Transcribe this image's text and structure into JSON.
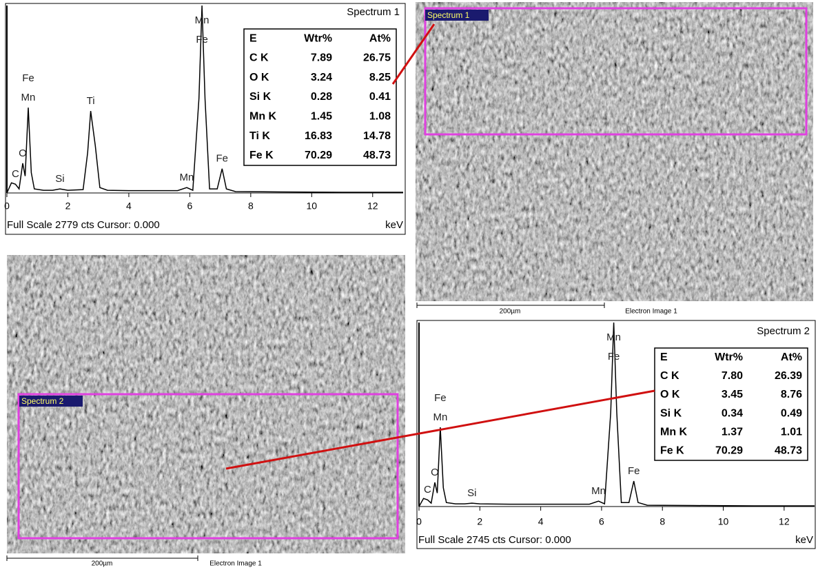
{
  "chart_data": [
    {
      "type": "line",
      "title": "Spectrum 1",
      "footer": "Full Scale 2779 cts Cursor: 0.000",
      "x_label": "keV",
      "xlim": [
        0,
        13
      ],
      "ylim": [
        0,
        2779
      ],
      "xticks": [
        0,
        2,
        4,
        6,
        8,
        10,
        12
      ],
      "color": "#000000",
      "x": [
        0,
        0.15,
        0.28,
        0.4,
        0.52,
        0.6,
        0.7,
        0.8,
        0.9,
        1.2,
        1.5,
        1.74,
        2.0,
        2.5,
        2.65,
        2.75,
        2.9,
        3.05,
        3.3,
        4,
        5,
        5.6,
        5.9,
        6.1,
        6.3,
        6.4,
        6.5,
        6.65,
        6.9,
        7.06,
        7.2,
        7.5,
        9,
        11,
        13
      ],
      "values": [
        0,
        150,
        130,
        60,
        440,
        250,
        1266,
        300,
        60,
        40,
        40,
        60,
        40,
        50,
        600,
        1215,
        700,
        80,
        40,
        35,
        35,
        35,
        80,
        40,
        1400,
        2779,
        1400,
        60,
        60,
        360,
        60,
        20,
        15,
        10,
        10
      ],
      "annotations": [
        {
          "x": 0.28,
          "labels": [
            "C"
          ]
        },
        {
          "x": 0.52,
          "labels": [
            "O"
          ]
        },
        {
          "x": 0.7,
          "labels": [
            "Fe",
            "Mn"
          ]
        },
        {
          "x": 1.74,
          "labels": [
            "Si"
          ]
        },
        {
          "x": 2.75,
          "labels": [
            "Ti"
          ]
        },
        {
          "x": 5.9,
          "labels": [
            "Mn"
          ]
        },
        {
          "x": 6.4,
          "labels": [
            "Mn",
            "Fe"
          ]
        },
        {
          "x": 7.06,
          "labels": [
            "Fe"
          ]
        }
      ],
      "table": {
        "header": [
          "E",
          "Wtr%",
          "At%"
        ],
        "rows": [
          [
            "C K",
            "7.89",
            "26.75"
          ],
          [
            "O K",
            "3.24",
            "8.25"
          ],
          [
            "Si K",
            "0.28",
            "0.41"
          ],
          [
            "Mn K",
            "1.45",
            "1.08"
          ],
          [
            "Ti  K",
            "16.83",
            "14.78"
          ],
          [
            "Fe K",
            "70.29",
            "48.73"
          ]
        ]
      }
    },
    {
      "type": "line",
      "title": "Spectrum 2",
      "footer": "Full Scale 2745 cts Cursor: 0.000",
      "x_label": "keV",
      "xlim": [
        0,
        13
      ],
      "ylim": [
        0,
        2745
      ],
      "xticks": [
        0,
        2,
        4,
        6,
        8,
        10,
        12
      ],
      "color": "#000000",
      "x": [
        0,
        0.15,
        0.28,
        0.4,
        0.52,
        0.6,
        0.7,
        0.8,
        0.9,
        1.2,
        1.5,
        1.74,
        2.0,
        3,
        4,
        5,
        5.6,
        5.9,
        6.1,
        6.3,
        6.4,
        6.5,
        6.65,
        6.9,
        7.06,
        7.2,
        7.5,
        9,
        11,
        13
      ],
      "values": [
        0,
        120,
        100,
        50,
        360,
        200,
        1182,
        280,
        60,
        40,
        40,
        50,
        40,
        35,
        35,
        35,
        35,
        80,
        40,
        1400,
        2745,
        1400,
        60,
        60,
        380,
        60,
        20,
        15,
        10,
        10
      ],
      "annotations": [
        {
          "x": 0.28,
          "labels": [
            "C"
          ]
        },
        {
          "x": 0.52,
          "labels": [
            "O"
          ]
        },
        {
          "x": 0.7,
          "labels": [
            "Fe",
            "Mn"
          ]
        },
        {
          "x": 1.74,
          "labels": [
            "Si"
          ]
        },
        {
          "x": 5.9,
          "labels": [
            "Mn"
          ]
        },
        {
          "x": 6.4,
          "labels": [
            "Mn",
            "Fe"
          ]
        },
        {
          "x": 7.06,
          "labels": [
            "Fe"
          ]
        }
      ],
      "table": {
        "header": [
          "E",
          "Wtr%",
          "At%"
        ],
        "rows": [
          [
            "C K",
            "7.80",
            "26.39"
          ],
          [
            "O K",
            "3.45",
            "8.76"
          ],
          [
            "Si K",
            "0.34",
            "0.49"
          ],
          [
            "Mn K",
            "1.37",
            "1.01"
          ],
          [
            "Fe  K",
            "70.29",
            "48.73"
          ]
        ]
      }
    }
  ],
  "images": [
    {
      "region": "Spectrum 1",
      "scale": "200µm",
      "caption": "Electron Image 1"
    },
    {
      "region": "Spectrum 2",
      "scale": "200µm",
      "caption": "Electron Image 1"
    }
  ]
}
